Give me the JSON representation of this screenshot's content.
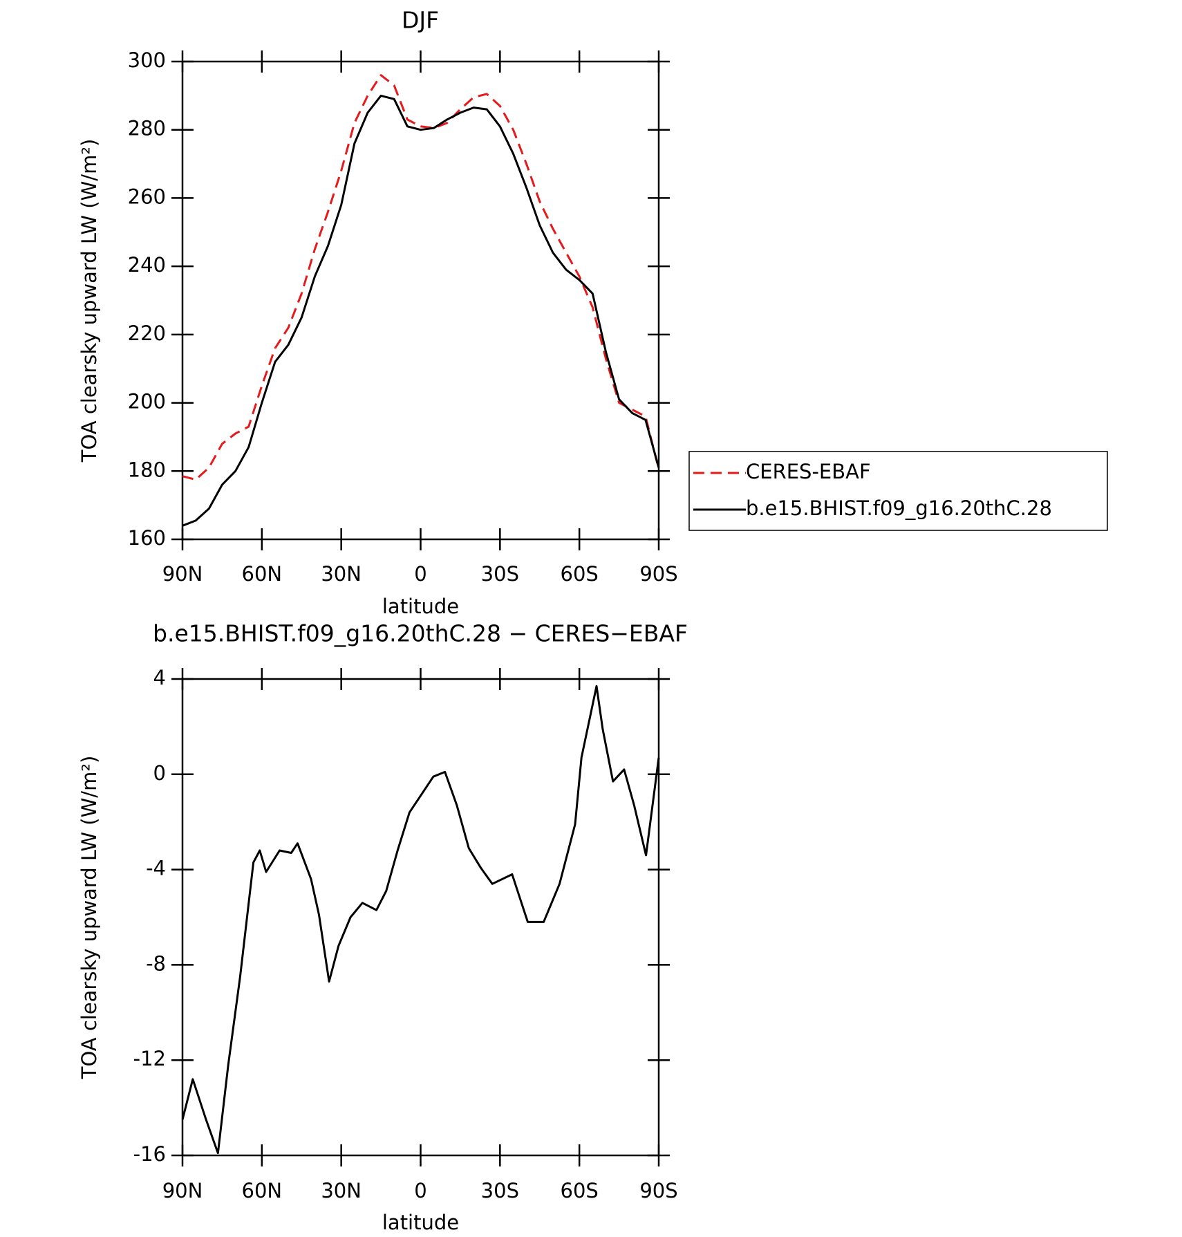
{
  "chart_data": [
    {
      "type": "line",
      "title": "DJF",
      "xlabel": "latitude",
      "ylabel": "TOA clearsky upward LW (W/m²)",
      "xlim": [
        90,
        -90
      ],
      "xticks": [
        {
          "value": 90,
          "label": "90N"
        },
        {
          "value": 60,
          "label": "60N"
        },
        {
          "value": 30,
          "label": "30N"
        },
        0,
        {
          "value": -30,
          "label": "30S"
        },
        {
          "value": -60,
          "label": "60S"
        },
        {
          "value": -90,
          "label": "90S"
        }
      ],
      "ylim": [
        160,
        300
      ],
      "yticks": [
        160,
        180,
        200,
        220,
        240,
        260,
        280,
        300
      ],
      "legend": "right",
      "x": [
        90,
        85,
        80,
        75,
        70,
        65,
        60,
        55,
        50,
        45,
        40,
        35,
        30,
        25,
        20,
        15,
        10,
        5,
        0,
        -5,
        -10,
        -15,
        -20,
        -25,
        -30,
        -35,
        -40,
        -45,
        -50,
        -55,
        -60,
        -65,
        -70,
        -75,
        -80,
        -85,
        -90
      ],
      "series": [
        {
          "name": "CERES-EBAF",
          "color": "#e41a1c",
          "dashed": true,
          "values": [
            178.5,
            177.5,
            181,
            188,
            191,
            193,
            205,
            216,
            222,
            232,
            245,
            256,
            268,
            282,
            290,
            296,
            293,
            283,
            281,
            280.5,
            282,
            286,
            289.5,
            290.5,
            287,
            280,
            270,
            259,
            251,
            244,
            237,
            228,
            213,
            200,
            198,
            196,
            180.5
          ]
        },
        {
          "name": "b.e15.BHIST.f09_g16.20thC.28",
          "color": "#000000",
          "dashed": false,
          "values": [
            164,
            165.5,
            169,
            176,
            180,
            187,
            200,
            212,
            217,
            225,
            237,
            246,
            258,
            276,
            285,
            290,
            289,
            281,
            280,
            280.5,
            283,
            285,
            286.5,
            286,
            281,
            273,
            263,
            252,
            244,
            239,
            236,
            232,
            215,
            201,
            197,
            195,
            181
          ]
        }
      ]
    },
    {
      "type": "line",
      "title": "b.e15.BHIST.f09_g16.20thC.28 − CERES−EBAF",
      "xlabel": "latitude",
      "ylabel": "TOA clearsky upward LW (W/m²)",
      "xlim": [
        90,
        -90
      ],
      "xticks": [
        {
          "value": 90,
          "label": "90N"
        },
        {
          "value": 60,
          "label": "60N"
        },
        {
          "value": 30,
          "label": "30N"
        },
        0,
        {
          "value": -30,
          "label": "30S"
        },
        {
          "value": -60,
          "label": "60S"
        },
        {
          "value": -90,
          "label": "90S"
        }
      ],
      "ylim": [
        -16,
        4
      ],
      "yticks": [
        -16,
        -12,
        -8,
        -4,
        0,
        4
      ],
      "x": [
        90,
        86.1,
        81.1,
        76.6,
        72.7,
        68.2,
        63.2,
        60.8,
        58.4,
        53.3,
        48.9,
        46.5,
        41.4,
        38.4,
        34.6,
        31,
        26.5,
        22,
        16.7,
        13,
        8.7,
        4.2,
        0,
        -4.8,
        -9.2,
        -13.7,
        -18.2,
        -22.6,
        -27.1,
        -34.6,
        -40.5,
        -46.5,
        -52.5,
        -58.4,
        -60.8,
        -66.5,
        -68.8,
        -72.7,
        -76.9,
        -80.7,
        -85.2,
        -90
      ],
      "series": [
        {
          "color": "#000000",
          "dashed": false,
          "values": [
            -14.5,
            -12.8,
            -14.5,
            -15.9,
            -12.2,
            -8.5,
            -3.7,
            -3.2,
            -4.1,
            -3.2,
            -3.3,
            -2.9,
            -4.4,
            -5.9,
            -8.7,
            -7.2,
            -6,
            -5.4,
            -5.7,
            -4.9,
            -3.2,
            -1.6,
            -0.9,
            -0.1,
            0.1,
            -1.3,
            -3.1,
            -3.9,
            -4.6,
            -4.2,
            -6.2,
            -6.2,
            -4.6,
            -2.1,
            0.7,
            3.7,
            1.9,
            -0.3,
            0.2,
            -1.3,
            -3.4,
            0.7
          ]
        }
      ]
    }
  ]
}
